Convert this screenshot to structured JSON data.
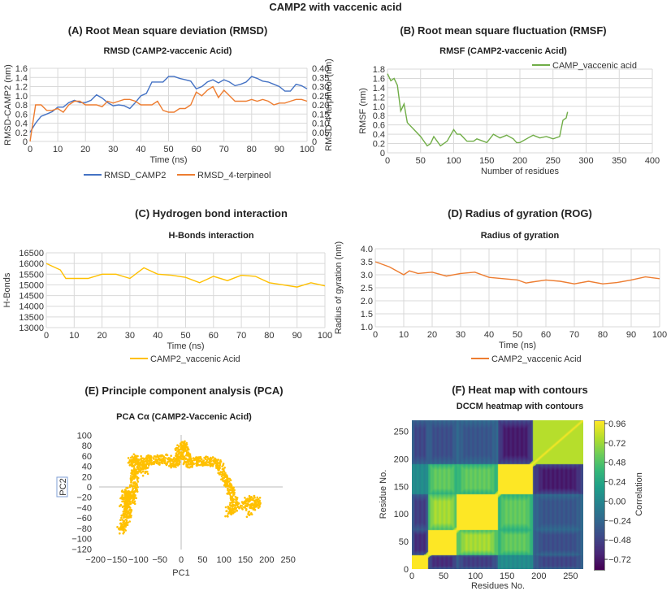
{
  "figure_title": "CAMP2 with vaccenic acid",
  "panels": {
    "A": {
      "heading": "(A) Root Mean square deviation (RMSD)"
    },
    "B": {
      "heading": "(B) Root mean square fluctuation (RMSF)"
    },
    "C": {
      "heading": "(C) Hydrogen bond interaction"
    },
    "D": {
      "heading": "(D) Radius of gyration (ROG)"
    },
    "E": {
      "heading": "(E) Principle component analysis (PCA)"
    },
    "F": {
      "heading": "(F) Heat map with contours"
    }
  },
  "chart_data": [
    {
      "id": "A",
      "type": "line",
      "title": "RMSD (CAMP2-vaccenic Acid)",
      "xlabel": "Time (ns)",
      "ylabel": "RMSD-CAMP2 (nm)",
      "y2label": "RMSD-4-terpineol (nm)",
      "xlim": [
        0,
        100
      ],
      "ylim": [
        0,
        1.6
      ],
      "y2lim": [
        0,
        0.4
      ],
      "xticks": [
        0,
        10,
        20,
        30,
        40,
        50,
        60,
        70,
        80,
        90,
        100
      ],
      "yticks": [
        "0",
        "0.2",
        "0.4",
        "0.6",
        "0.8",
        "1.0",
        "1.2",
        "1.4",
        "1.6"
      ],
      "y2ticks": [
        "0",
        "0.05",
        "0.10",
        "0.15",
        "0.20",
        "0.25",
        "0.30",
        "0.35",
        "0.40"
      ],
      "grid": true,
      "legend": "bottom",
      "x": [
        0,
        2,
        4,
        6,
        8,
        10,
        12,
        14,
        16,
        18,
        20,
        22,
        24,
        26,
        28,
        30,
        32,
        34,
        36,
        38,
        40,
        42,
        44,
        46,
        48,
        50,
        52,
        54,
        56,
        58,
        60,
        62,
        64,
        66,
        68,
        70,
        72,
        74,
        76,
        78,
        80,
        82,
        84,
        86,
        88,
        90,
        92,
        94,
        96,
        98,
        100
      ],
      "series": [
        {
          "name": "RMSD_CAMP2",
          "axis": "left",
          "color": "#4472c4",
          "values": [
            0.2,
            0.4,
            0.55,
            0.6,
            0.65,
            0.75,
            0.75,
            0.85,
            0.9,
            0.85,
            0.85,
            0.9,
            1.02,
            0.95,
            0.85,
            0.78,
            0.8,
            0.78,
            0.72,
            0.85,
            1.0,
            1.05,
            1.3,
            1.3,
            1.3,
            1.42,
            1.42,
            1.38,
            1.35,
            1.32,
            1.15,
            1.2,
            1.3,
            1.35,
            1.28,
            1.35,
            1.3,
            1.22,
            1.25,
            1.3,
            1.42,
            1.38,
            1.32,
            1.3,
            1.25,
            1.2,
            1.1,
            1.1,
            1.25,
            1.22,
            1.15
          ]
        },
        {
          "name": "RMSD_4-terpineol",
          "axis": "right",
          "color": "#ed7d31",
          "values": [
            0.0,
            0.2,
            0.2,
            0.17,
            0.17,
            0.18,
            0.16,
            0.2,
            0.22,
            0.22,
            0.2,
            0.2,
            0.2,
            0.19,
            0.22,
            0.21,
            0.22,
            0.23,
            0.23,
            0.22,
            0.2,
            0.2,
            0.2,
            0.22,
            0.17,
            0.16,
            0.16,
            0.18,
            0.18,
            0.2,
            0.27,
            0.25,
            0.28,
            0.3,
            0.24,
            0.28,
            0.25,
            0.22,
            0.22,
            0.22,
            0.23,
            0.22,
            0.23,
            0.22,
            0.2,
            0.21,
            0.21,
            0.22,
            0.23,
            0.23,
            0.22
          ]
        }
      ]
    },
    {
      "id": "B",
      "type": "line",
      "title": "RMSF (CAMP2-vaccenic Acid)",
      "xlabel": "Number of residues",
      "ylabel": "RMSF (nm)",
      "xlim": [
        0,
        400
      ],
      "ylim": [
        0,
        1.8
      ],
      "xticks": [
        0,
        50,
        100,
        150,
        200,
        250,
        300,
        350,
        400
      ],
      "yticks": [
        "0",
        "0.2",
        "0.4",
        "0.6",
        "0.8",
        "1.0",
        "1.2",
        "1.4",
        "1.6",
        "1.8"
      ],
      "grid": true,
      "legend": "top-right",
      "x": [
        0,
        5,
        10,
        15,
        20,
        25,
        30,
        40,
        50,
        60,
        65,
        70,
        80,
        90,
        100,
        105,
        110,
        120,
        130,
        135,
        150,
        160,
        170,
        180,
        190,
        195,
        200,
        210,
        220,
        230,
        240,
        250,
        260,
        265,
        270,
        272
      ],
      "series": [
        {
          "name": "CAMP_vaccenic acid",
          "color": "#70ad47",
          "values": [
            1.7,
            1.55,
            1.6,
            1.45,
            0.9,
            1.05,
            0.65,
            0.5,
            0.35,
            0.15,
            0.2,
            0.35,
            0.15,
            0.25,
            0.5,
            0.4,
            0.4,
            0.25,
            0.25,
            0.3,
            0.22,
            0.4,
            0.32,
            0.38,
            0.3,
            0.22,
            0.22,
            0.3,
            0.38,
            0.32,
            0.35,
            0.3,
            0.35,
            0.7,
            0.75,
            0.88
          ]
        }
      ]
    },
    {
      "id": "C",
      "type": "line",
      "title": "H-Bonds interaction",
      "xlabel": "Time (ns)",
      "ylabel": "H-Bonds",
      "xlim": [
        0,
        100
      ],
      "ylim": [
        13000,
        16500
      ],
      "xticks": [
        0,
        10,
        20,
        30,
        40,
        50,
        60,
        70,
        80,
        90,
        100
      ],
      "yticks": [
        "13000",
        "13500",
        "14000",
        "14500",
        "15000",
        "15500",
        "16000",
        "16500"
      ],
      "grid": true,
      "legend": "bottom",
      "x": [
        0,
        5,
        7,
        10,
        15,
        20,
        25,
        30,
        35,
        40,
        45,
        50,
        55,
        60,
        65,
        70,
        75,
        80,
        85,
        90,
        95,
        100
      ],
      "series": [
        {
          "name": "CAMP2_vaccenic Acid",
          "color": "#ffc000",
          "values": [
            16000,
            15700,
            15300,
            15300,
            15300,
            15500,
            15500,
            15300,
            15800,
            15500,
            15450,
            15350,
            15100,
            15400,
            15200,
            15450,
            15400,
            15100,
            15000,
            14900,
            15100,
            14950
          ]
        }
      ]
    },
    {
      "id": "D",
      "type": "line",
      "title": "Radius of gyration",
      "xlabel": "Time (ns)",
      "ylabel": "Radius of gyration (nm)",
      "xlim": [
        0,
        100
      ],
      "ylim": [
        1.0,
        4.0
      ],
      "xticks": [
        0,
        10,
        20,
        30,
        40,
        50,
        60,
        70,
        80,
        90,
        100
      ],
      "yticks": [
        "1.0",
        "1.5",
        "2.0",
        "2.5",
        "3.0",
        "3.5",
        "4.0"
      ],
      "grid": true,
      "legend": "bottom",
      "x": [
        0,
        5,
        10,
        12,
        15,
        20,
        25,
        30,
        35,
        40,
        45,
        50,
        53,
        55,
        60,
        65,
        70,
        75,
        80,
        85,
        90,
        95,
        100
      ],
      "series": [
        {
          "name": "CAMP2_vaccenic Acid",
          "color": "#ed7d31",
          "values": [
            3.5,
            3.3,
            3.0,
            3.15,
            3.05,
            3.1,
            2.95,
            3.05,
            3.1,
            2.9,
            2.85,
            2.8,
            2.68,
            2.72,
            2.8,
            2.75,
            2.65,
            2.75,
            2.65,
            2.7,
            2.8,
            2.92,
            2.85
          ]
        }
      ]
    },
    {
      "id": "E",
      "type": "scatter",
      "title": "PCA Cα (CAMP2-Vaccenic Acid)",
      "xlabel": "PC1",
      "ylabel": "PC2",
      "xlim": [
        -200,
        250
      ],
      "ylim": [
        -120,
        100
      ],
      "xticks": [
        "−200",
        "−150",
        "−100",
        "−50",
        "0",
        "50",
        "100",
        "150",
        "200",
        "250"
      ],
      "yticks": [
        "−120",
        "−100",
        "−80",
        "−60",
        "−40",
        "−20",
        "0",
        "20",
        "40",
        "60",
        "80",
        "100"
      ],
      "color": "#ffc000",
      "points": [
        [
          -140,
          -85
        ],
        [
          -135,
          -70
        ],
        [
          -125,
          -55
        ],
        [
          -125,
          -40
        ],
        [
          -135,
          -30
        ],
        [
          -130,
          -10
        ],
        [
          -125,
          -20
        ],
        [
          -115,
          -25
        ],
        [
          -110,
          0
        ],
        [
          -110,
          20
        ],
        [
          -105,
          35
        ],
        [
          -115,
          55
        ],
        [
          -95,
          50
        ],
        [
          -85,
          30
        ],
        [
          -80,
          55
        ],
        [
          -60,
          50
        ],
        [
          -40,
          55
        ],
        [
          -20,
          45
        ],
        [
          -5,
          50
        ],
        [
          -5,
          70
        ],
        [
          5,
          80
        ],
        [
          10,
          65
        ],
        [
          15,
          45
        ],
        [
          30,
          50
        ],
        [
          50,
          50
        ],
        [
          70,
          50
        ],
        [
          85,
          45
        ],
        [
          100,
          25
        ],
        [
          110,
          10
        ],
        [
          115,
          -10
        ],
        [
          125,
          -30
        ],
        [
          110,
          -50
        ],
        [
          140,
          -35
        ],
        [
          160,
          -25
        ],
        [
          180,
          -30
        ],
        [
          150,
          -50
        ]
      ]
    },
    {
      "id": "F",
      "type": "heatmap",
      "title": "DCCM heatmap with contours",
      "xlabel": "Residues No.",
      "ylabel": "Residue No.",
      "colorbar_label": "Correlation",
      "xlim": [
        0,
        270
      ],
      "ylim": [
        0,
        270
      ],
      "xticks": [
        0,
        50,
        100,
        150,
        200,
        250
      ],
      "yticks": [
        0,
        50,
        100,
        150,
        200,
        250
      ],
      "colorbar_ticks": [
        "0.96",
        "0.72",
        "0.48",
        "0.24",
        "0.00",
        "−0.24",
        "−0.48",
        "−0.72"
      ],
      "colorbar_range": [
        -0.84,
        1.0
      ],
      "colormap": "viridis",
      "segments": [
        0,
        25,
        70,
        135,
        190,
        270
      ],
      "block_correlation": [
        [
          1.0,
          -0.6,
          -0.5,
          0.05,
          -0.45
        ],
        [
          -0.6,
          1.0,
          0.75,
          0.55,
          -0.4
        ],
        [
          -0.5,
          0.75,
          1.0,
          0.55,
          -0.35
        ],
        [
          0.05,
          0.55,
          0.55,
          1.0,
          -0.7
        ],
        [
          -0.45,
          -0.4,
          -0.35,
          -0.7,
          0.8
        ]
      ]
    }
  ]
}
